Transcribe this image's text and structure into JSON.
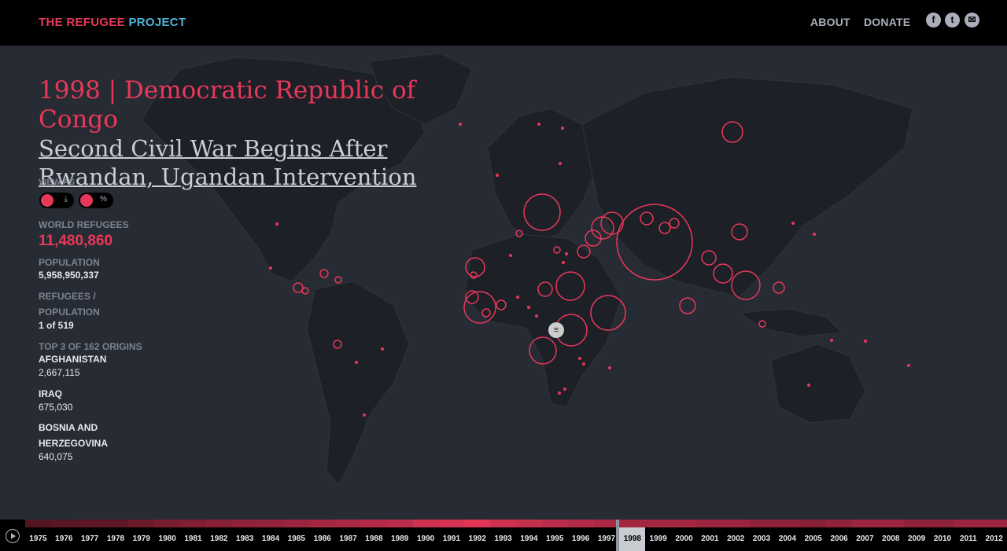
{
  "header": {
    "logo_part1": "THE REFUGEE",
    "logo_part2": "PROJECT",
    "nav": [
      "ABOUT",
      "DONATE"
    ],
    "social_icons": [
      "facebook-icon",
      "twitter-icon",
      "mail-icon"
    ]
  },
  "event": {
    "title": "1998 | Democratic Republic of Congo",
    "subtitle": "Second Civil War Begins After Rwandan, Ugandan Intervention"
  },
  "view": {
    "label": "VIEW AS",
    "toggle1_alt": "⤓",
    "toggle2_alt": "%"
  },
  "stats": {
    "world_refugees_label": "WORLD REFUGEES",
    "world_refugees_value": "11,480,860",
    "population_label": "POPULATION",
    "population_value": "5,958,950,337",
    "ratio_label_1": "REFUGEES /",
    "ratio_label_2": "POPULATION",
    "ratio_value": "1 of 519",
    "top_label": "TOP 3 OF 162 ORIGINS",
    "origins": [
      {
        "name": "AFGHANISTAN",
        "value": "2,667,115"
      },
      {
        "name": "IRAQ",
        "value": "675,030"
      },
      {
        "name_line1": "BOSNIA AND",
        "name_line2": "HERZEGOVINA",
        "value": "640,075"
      }
    ]
  },
  "timeline": {
    "years": [
      "1975",
      "1976",
      "1977",
      "1978",
      "1979",
      "1980",
      "1981",
      "1982",
      "1983",
      "1984",
      "1985",
      "1986",
      "1987",
      "1988",
      "1989",
      "1990",
      "1991",
      "1992",
      "1993",
      "1994",
      "1995",
      "1996",
      "1997",
      "1998",
      "1999",
      "2000",
      "2001",
      "2002",
      "2003",
      "2004",
      "2005",
      "2006",
      "2007",
      "2008",
      "2009",
      "2010",
      "2011",
      "2012"
    ],
    "selected": "1998",
    "intensity": [
      0.15,
      0.18,
      0.2,
      0.22,
      0.28,
      0.35,
      0.4,
      0.45,
      0.5,
      0.52,
      0.55,
      0.6,
      0.65,
      0.7,
      0.75,
      0.85,
      0.9,
      0.95,
      0.85,
      0.8,
      0.75,
      0.7,
      0.65,
      0.6,
      0.6,
      0.6,
      0.55,
      0.55,
      0.5,
      0.5,
      0.45,
      0.5,
      0.55,
      0.55,
      0.5,
      0.5,
      0.55,
      0.55
    ]
  },
  "colors": {
    "accent": "#e8385a",
    "logo_blue": "#4bb4d8",
    "background": "#272b33",
    "land": "#1d2027"
  }
}
